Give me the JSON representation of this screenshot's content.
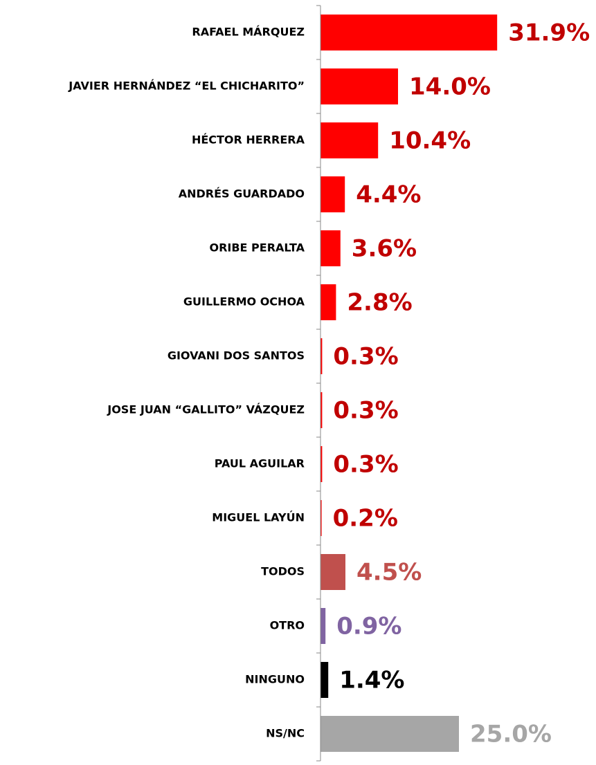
{
  "chart_data": {
    "type": "barh",
    "categories": [
      "RAFAEL MÁRQUEZ",
      "JAVIER HERNÁNDEZ “EL CHICHARITO”",
      "HÉCTOR HERRERA",
      "ANDRÉS GUARDADO",
      "ORIBE PERALTA",
      "GUILLERMO OCHOA",
      "GIOVANI DOS SANTOS",
      "JOSE JUAN “GALLITO” VÁZQUEZ",
      "PAUL AGUILAR",
      "MIGUEL LAYÚN",
      "TODOS",
      "OTRO",
      "NINGUNO",
      "NS/NC"
    ],
    "values": [
      31.9,
      14.0,
      10.4,
      4.4,
      3.6,
      2.8,
      0.3,
      0.3,
      0.3,
      0.2,
      4.5,
      0.9,
      1.4,
      25.0
    ],
    "value_labels": [
      "31.9%",
      "14.0%",
      "10.4%",
      "4.4%",
      "3.6%",
      "2.8%",
      "0.3%",
      "0.3%",
      "0.3%",
      "0.2%",
      "4.5%",
      "0.9%",
      "1.4%",
      "25.0%"
    ],
    "colors": [
      "#ff0000",
      "#ff0000",
      "#ff0000",
      "#ff0000",
      "#ff0000",
      "#ff0000",
      "#ff0000",
      "#ff0000",
      "#ff0000",
      "#ff0000",
      "#c0504d",
      "#8064a2",
      "#000000",
      "#a6a6a6"
    ],
    "label_colors": [
      "#c00000",
      "#c00000",
      "#c00000",
      "#c00000",
      "#c00000",
      "#c00000",
      "#c00000",
      "#c00000",
      "#c00000",
      "#c00000",
      "#c0504d",
      "#8064a2",
      "#000000",
      "#a6a6a6"
    ],
    "xlim": [
      0,
      49
    ]
  }
}
